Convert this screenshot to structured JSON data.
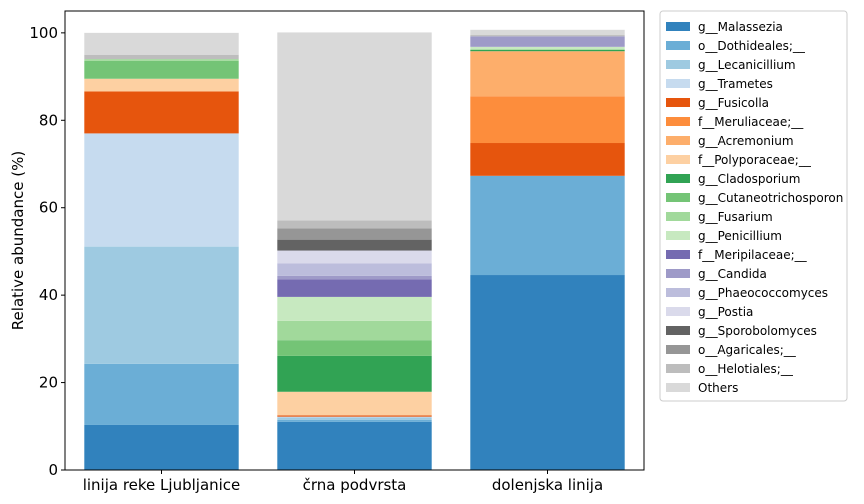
{
  "chart_data": {
    "type": "bar",
    "stacked": true,
    "xlabel": "",
    "ylabel": "Relative abundance (%)",
    "ylim": [
      0,
      105
    ],
    "yticks": [
      0,
      20,
      40,
      60,
      80,
      100
    ],
    "categories": [
      "linija reke Ljubljanice",
      "črna podvrsta",
      "dolenjska linija"
    ],
    "legend_position": "right",
    "series": [
      {
        "name": "g__Malassezia",
        "color": "#3182bd",
        "values": [
          10.3,
          11.0,
          44.6
        ]
      },
      {
        "name": "o__Dothideales;__",
        "color": "#6baed6",
        "values": [
          14.0,
          0.5,
          22.7
        ]
      },
      {
        "name": "g__Lecanicillium",
        "color": "#9ecae1",
        "values": [
          26.8,
          0.5,
          0.0
        ]
      },
      {
        "name": "g__Trametes",
        "color": "#c6dbef",
        "values": [
          25.9,
          0.2,
          0.0
        ]
      },
      {
        "name": "g__Fusicolla",
        "color": "#e6550d",
        "values": [
          9.6,
          0.3,
          7.5
        ]
      },
      {
        "name": "f__Meruliaceae;__",
        "color": "#fd8d3c",
        "values": [
          0.0,
          0.0,
          10.7
        ]
      },
      {
        "name": "g__Acremonium",
        "color": "#fdae6b",
        "values": [
          0.0,
          0.0,
          10.3
        ]
      },
      {
        "name": "f__Polyporaceae;__",
        "color": "#fdd0a2",
        "values": [
          2.9,
          5.4,
          0.0
        ]
      },
      {
        "name": "g__Cladosporium",
        "color": "#31a354",
        "values": [
          0.0,
          8.2,
          0.3
        ]
      },
      {
        "name": "g__Cutaneotrichosporon",
        "color": "#74c476",
        "values": [
          4.1,
          3.6,
          0.0
        ]
      },
      {
        "name": "g__Fusarium",
        "color": "#a1d99b",
        "values": [
          0.4,
          4.4,
          0.2
        ]
      },
      {
        "name": "g__Penicillium",
        "color": "#c7e9c0",
        "values": [
          0.0,
          5.5,
          0.5
        ]
      },
      {
        "name": "f__Meripilaceae;__",
        "color": "#756bb1",
        "values": [
          0.0,
          4.0,
          0.0
        ]
      },
      {
        "name": "g__Candida",
        "color": "#9e9ac8",
        "values": [
          0.0,
          0.8,
          2.4
        ]
      },
      {
        "name": "g__Phaeococcomyces",
        "color": "#bcbddc",
        "values": [
          0.0,
          2.9,
          0.0
        ]
      },
      {
        "name": "g__Postia",
        "color": "#dadaeb",
        "values": [
          0.0,
          2.9,
          0.0
        ]
      },
      {
        "name": "g__Sporobolomyces",
        "color": "#636363",
        "values": [
          0.0,
          2.5,
          0.0
        ]
      },
      {
        "name": "o__Agaricales;__",
        "color": "#969696",
        "values": [
          0.0,
          2.6,
          0.0
        ]
      },
      {
        "name": "o__Helotiales;__",
        "color": "#bdbdbd",
        "values": [
          1.0,
          1.8,
          0.3
        ]
      },
      {
        "name": "Others",
        "color": "#d9d9d9",
        "values": [
          5.0,
          43.0,
          1.2
        ]
      }
    ]
  }
}
